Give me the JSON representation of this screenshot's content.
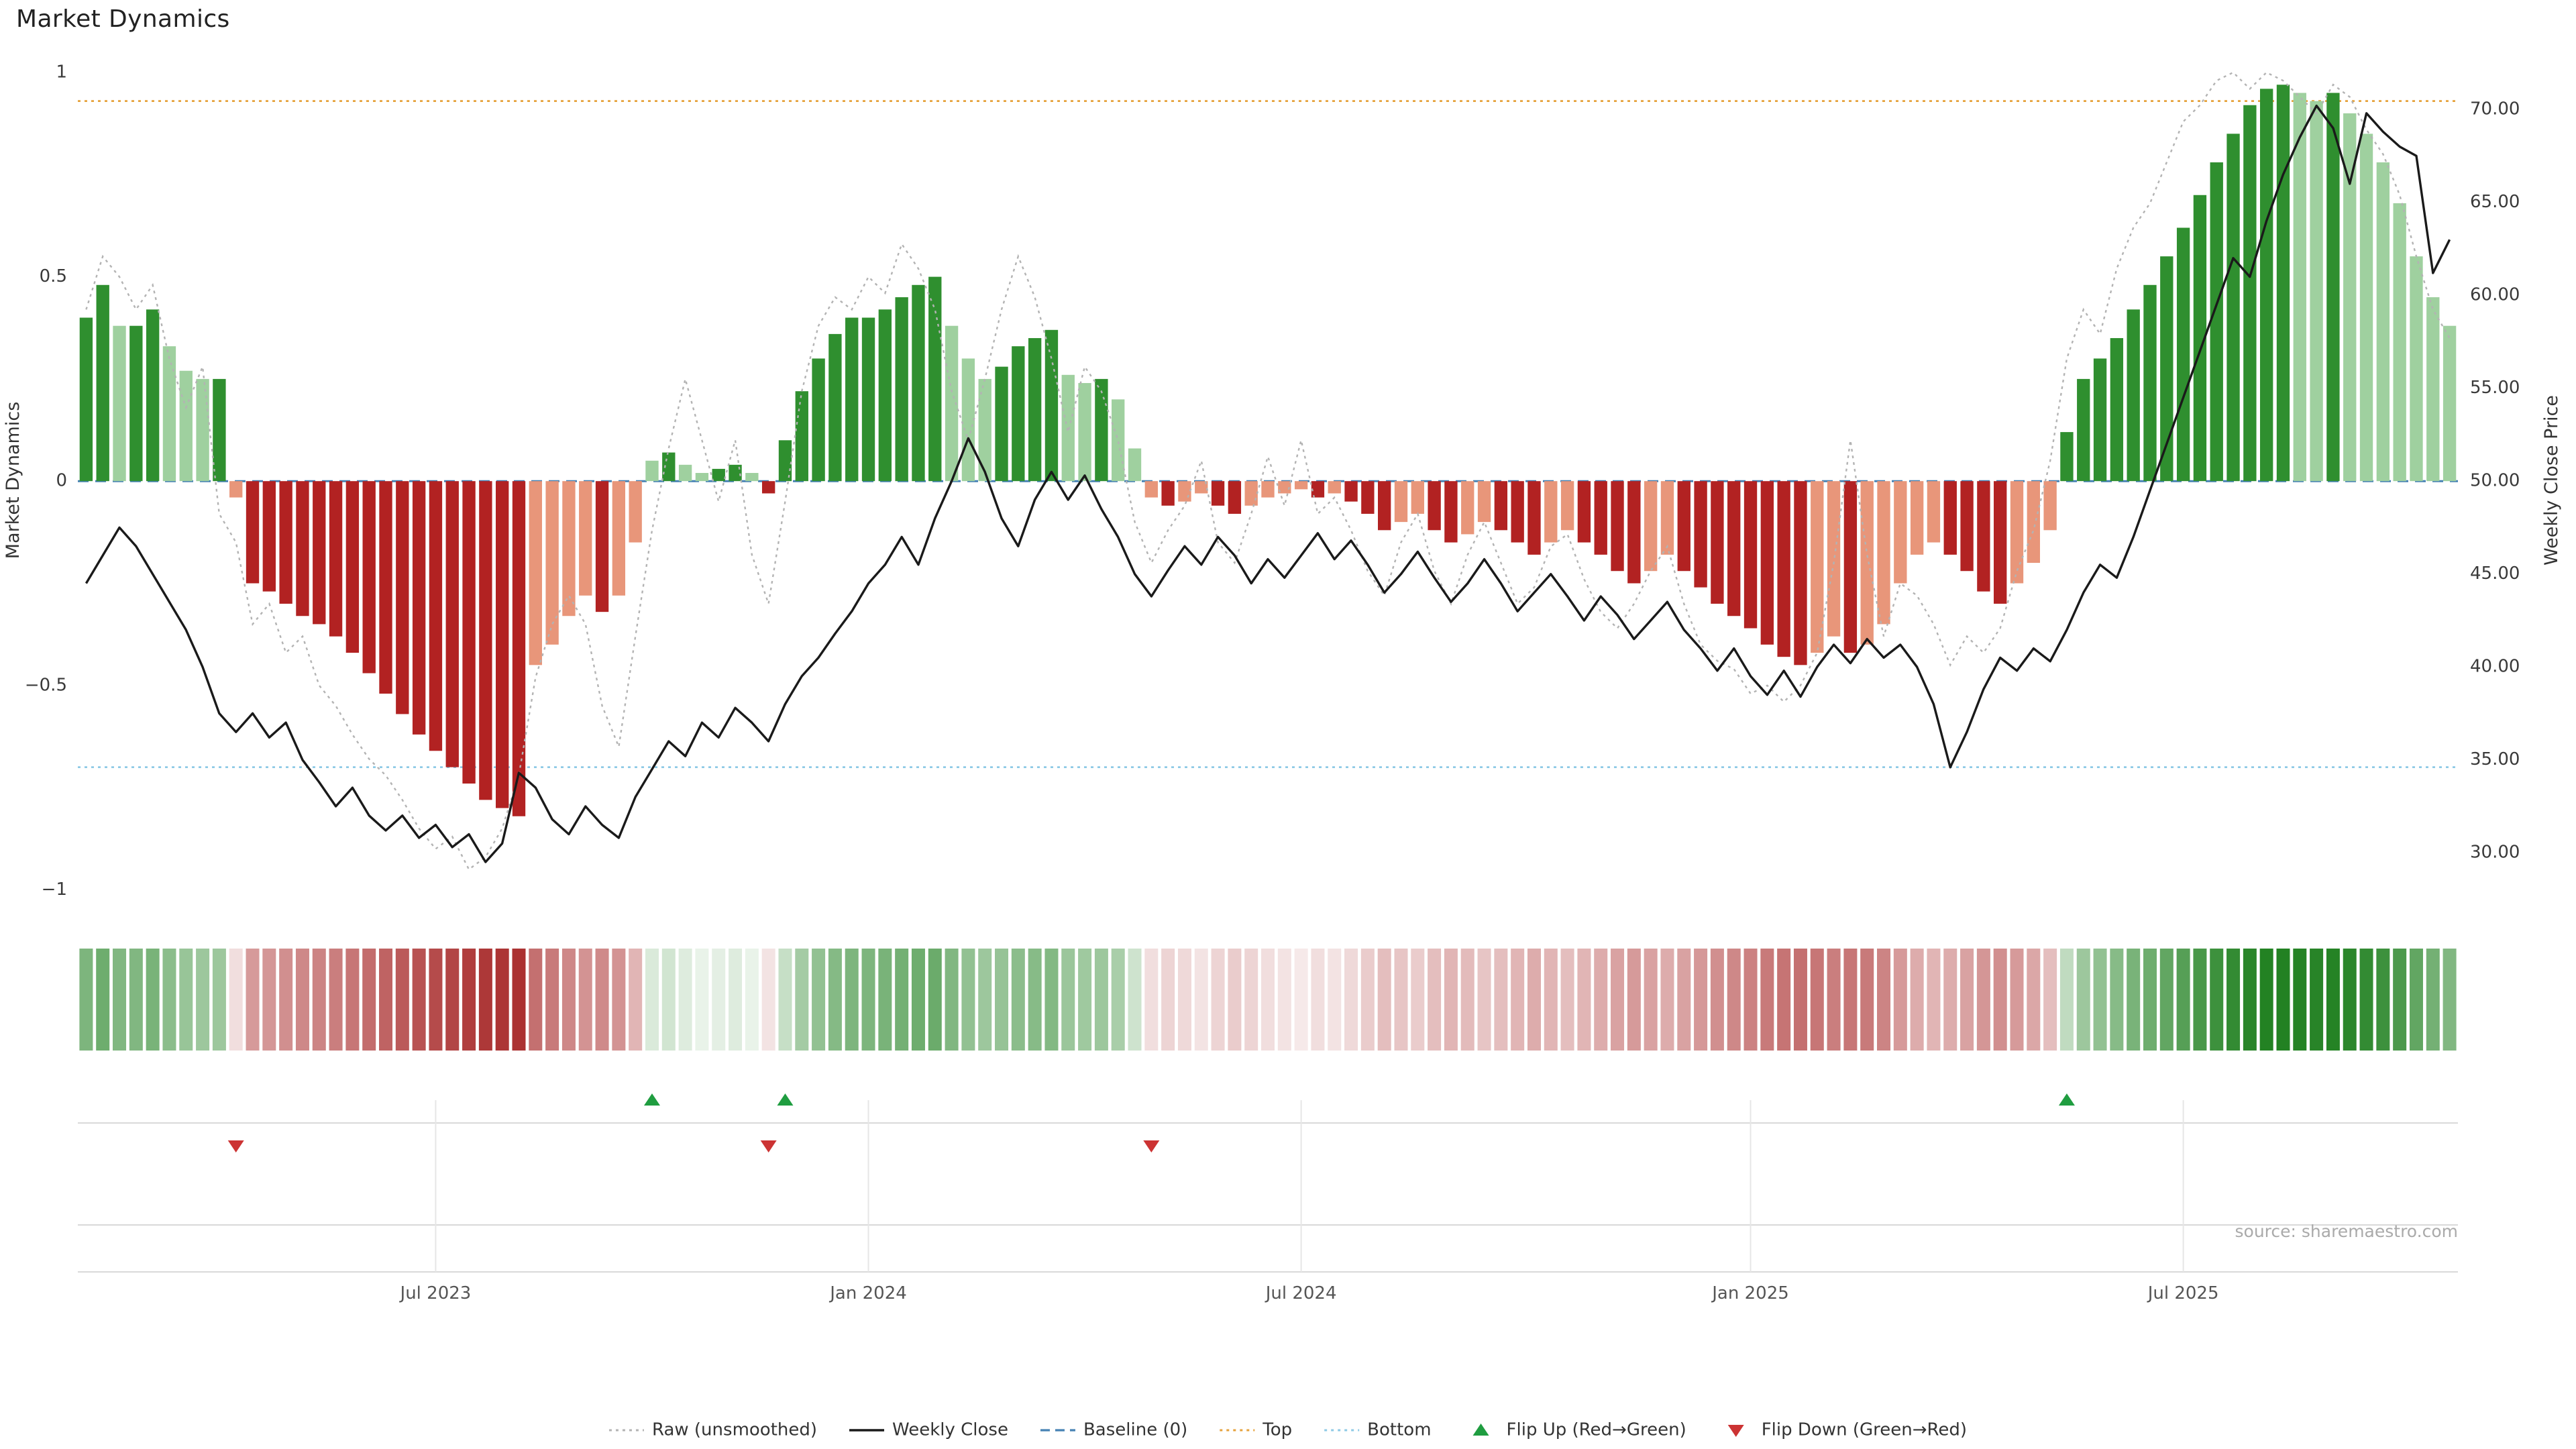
{
  "title": "Market Dynamics",
  "source": "source: sharemaestro.com",
  "colors": {
    "bar_green_dark": "#2f8f2f",
    "bar_green_light": "#9fd09f",
    "bar_red_dark": "#b22222",
    "bar_red_light": "#e8967a",
    "raw_line": "#b3b3b3",
    "close_line": "#1a1a1a",
    "baseline": "#4682b4",
    "top_line": "#e6a23c",
    "bottom_line": "#8ecae6",
    "flip_up": "#1f9d40",
    "flip_down": "#cc3333",
    "heat_green": "#1e7f1e",
    "heat_red": "#a01818",
    "grid": "#d9d9d9",
    "grid_light": "#e6e6e6",
    "tick_text": "#3a3a3a",
    "axis_label_text": "#333333",
    "x_tick_text": "#555555",
    "source_text": "#aaaaaa",
    "legend_text": "#333333"
  },
  "legend": {
    "items": [
      {
        "label": "Raw (unsmoothed)",
        "swatch": "dotted-line",
        "color_key": "raw_line"
      },
      {
        "label": "Weekly Close",
        "swatch": "solid-line",
        "color_key": "close_line"
      },
      {
        "label": "Baseline (0)",
        "swatch": "dashed-line",
        "color_key": "baseline"
      },
      {
        "label": "Top",
        "swatch": "dotted-line",
        "color_key": "top_line"
      },
      {
        "label": "Bottom",
        "swatch": "dotted-line",
        "color_key": "bottom_line"
      },
      {
        "label": "Flip Up (Red→Green)",
        "swatch": "triangle-up",
        "color_key": "flip_up"
      },
      {
        "label": "Flip Down (Green→Red)",
        "swatch": "triangle-down",
        "color_key": "flip_down"
      }
    ]
  },
  "chart_data": {
    "type": "bar",
    "description": "Weekly market-dynamics oscillator bars with raw unsmoothed overlay, weekly close price line on right axis, heatmap strip of same oscillator values, and regime flip markers.",
    "x_start_date": "2023-02-06",
    "x_step_days": 7,
    "n_points": 143,
    "baseline": 0,
    "top_threshold": 0.93,
    "bottom_threshold": -0.7,
    "flip_up_indices": [
      34,
      42,
      119
    ],
    "flip_down_indices": [
      9,
      41,
      64
    ],
    "left_axis": {
      "label": "Market Dynamics",
      "range": [
        -1.08,
        1.08
      ],
      "ticks": [
        {
          "label": "1",
          "value": 1
        },
        {
          "label": "0.5",
          "value": 0.5
        },
        {
          "label": "0",
          "value": 0
        },
        {
          "label": "−0.5",
          "value": -0.5
        },
        {
          "label": "−1",
          "value": -1
        }
      ]
    },
    "right_axis": {
      "label": "Weekly Close Price",
      "range": [
        28,
        72
      ],
      "ticks": [
        {
          "label": "70.00",
          "value": 70
        },
        {
          "label": "65.00",
          "value": 65
        },
        {
          "label": "60.00",
          "value": 60
        },
        {
          "label": "55.00",
          "value": 55
        },
        {
          "label": "50.00",
          "value": 50
        },
        {
          "label": "45.00",
          "value": 45
        },
        {
          "label": "40.00",
          "value": 40
        },
        {
          "label": "35.00",
          "value": 35
        },
        {
          "label": "30.00",
          "value": 30
        }
      ]
    },
    "x_axis": {
      "ticks": [
        {
          "label": "Jul 2023",
          "index": 21
        },
        {
          "label": "Jan 2024",
          "index": 47
        },
        {
          "label": "Jul 2024",
          "index": 73
        },
        {
          "label": "Jan 2025",
          "index": 100
        },
        {
          "label": "Jul 2025",
          "index": 126
        }
      ]
    },
    "oscillator": [
      0.4,
      0.48,
      0.38,
      0.38,
      0.42,
      0.33,
      0.27,
      0.25,
      0.25,
      -0.04,
      -0.25,
      -0.27,
      -0.3,
      -0.33,
      -0.35,
      -0.38,
      -0.42,
      -0.47,
      -0.52,
      -0.57,
      -0.62,
      -0.66,
      -0.7,
      -0.74,
      -0.78,
      -0.8,
      -0.82,
      -0.45,
      -0.4,
      -0.33,
      -0.28,
      -0.32,
      -0.28,
      -0.15,
      0.05,
      0.07,
      0.04,
      0.02,
      0.03,
      0.04,
      0.02,
      -0.03,
      0.1,
      0.22,
      0.3,
      0.36,
      0.4,
      0.4,
      0.42,
      0.45,
      0.48,
      0.5,
      0.38,
      0.3,
      0.25,
      0.28,
      0.33,
      0.35,
      0.37,
      0.26,
      0.24,
      0.25,
      0.2,
      0.08,
      -0.04,
      -0.06,
      -0.05,
      -0.03,
      -0.06,
      -0.08,
      -0.06,
      -0.04,
      -0.03,
      -0.02,
      -0.04,
      -0.03,
      -0.05,
      -0.08,
      -0.12,
      -0.1,
      -0.08,
      -0.12,
      -0.15,
      -0.13,
      -0.1,
      -0.12,
      -0.15,
      -0.18,
      -0.15,
      -0.12,
      -0.15,
      -0.18,
      -0.22,
      -0.25,
      -0.22,
      -0.18,
      -0.22,
      -0.26,
      -0.3,
      -0.33,
      -0.36,
      -0.4,
      -0.43,
      -0.45,
      -0.42,
      -0.38,
      -0.42,
      -0.4,
      -0.35,
      -0.25,
      -0.18,
      -0.15,
      -0.18,
      -0.22,
      -0.27,
      -0.3,
      -0.25,
      -0.2,
      -0.12,
      0.12,
      0.25,
      0.3,
      0.35,
      0.42,
      0.48,
      0.55,
      0.62,
      0.7,
      0.78,
      0.85,
      0.92,
      0.96,
      0.97,
      0.95,
      0.93,
      0.95,
      0.9,
      0.85,
      0.78,
      0.68,
      0.55,
      0.45,
      0.38
    ],
    "raw": [
      0.42,
      0.55,
      0.5,
      0.42,
      0.48,
      0.3,
      0.18,
      0.28,
      -0.08,
      -0.15,
      -0.35,
      -0.3,
      -0.42,
      -0.38,
      -0.5,
      -0.55,
      -0.62,
      -0.68,
      -0.72,
      -0.78,
      -0.85,
      -0.9,
      -0.87,
      -0.95,
      -0.92,
      -0.85,
      -0.72,
      -0.48,
      -0.35,
      -0.28,
      -0.35,
      -0.55,
      -0.65,
      -0.38,
      -0.12,
      0.08,
      0.25,
      0.1,
      -0.05,
      0.1,
      -0.18,
      -0.3,
      -0.05,
      0.22,
      0.38,
      0.45,
      0.42,
      0.5,
      0.46,
      0.58,
      0.52,
      0.42,
      0.22,
      0.1,
      0.25,
      0.42,
      0.55,
      0.45,
      0.3,
      0.12,
      0.28,
      0.22,
      0.1,
      -0.1,
      -0.2,
      -0.12,
      -0.06,
      0.05,
      -0.15,
      -0.2,
      -0.08,
      0.06,
      -0.06,
      0.1,
      -0.08,
      -0.04,
      -0.12,
      -0.22,
      -0.28,
      -0.15,
      -0.08,
      -0.22,
      -0.3,
      -0.18,
      -0.1,
      -0.2,
      -0.3,
      -0.26,
      -0.16,
      -0.13,
      -0.24,
      -0.32,
      -0.36,
      -0.3,
      -0.22,
      -0.16,
      -0.3,
      -0.4,
      -0.44,
      -0.46,
      -0.52,
      -0.5,
      -0.54,
      -0.5,
      -0.42,
      -0.2,
      0.1,
      -0.18,
      -0.38,
      -0.25,
      -0.28,
      -0.35,
      -0.45,
      -0.38,
      -0.42,
      -0.36,
      -0.22,
      -0.12,
      0.05,
      0.3,
      0.42,
      0.36,
      0.52,
      0.62,
      0.68,
      0.78,
      0.88,
      0.92,
      0.98,
      1.0,
      0.96,
      1.0,
      0.98,
      0.94,
      0.9,
      0.97,
      0.94,
      0.86,
      0.8,
      0.7,
      0.55,
      0.42,
      0.35
    ],
    "weekly_close": [
      44.5,
      46.0,
      47.5,
      46.5,
      45.0,
      43.5,
      42.0,
      40.0,
      37.5,
      36.5,
      37.5,
      36.2,
      37.0,
      35.0,
      33.8,
      32.5,
      33.5,
      32.0,
      31.2,
      32.0,
      30.8,
      31.5,
      30.3,
      31.0,
      29.5,
      30.5,
      34.3,
      33.5,
      31.8,
      31.0,
      32.5,
      31.5,
      30.8,
      33.0,
      34.5,
      36.0,
      35.2,
      37.0,
      36.2,
      37.8,
      37.0,
      36.0,
      38.0,
      39.5,
      40.5,
      41.8,
      43.0,
      44.5,
      45.5,
      47.0,
      45.5,
      48.0,
      50.0,
      52.3,
      50.5,
      48.0,
      46.5,
      49.0,
      50.5,
      49.0,
      50.3,
      48.5,
      47.0,
      45.0,
      43.8,
      45.2,
      46.5,
      45.5,
      47.0,
      46.0,
      44.5,
      45.8,
      44.8,
      46.0,
      47.2,
      45.8,
      46.8,
      45.5,
      44.0,
      45.0,
      46.2,
      44.8,
      43.5,
      44.5,
      45.8,
      44.5,
      43.0,
      44.0,
      45.0,
      43.8,
      42.5,
      43.8,
      42.8,
      41.5,
      42.5,
      43.5,
      42.0,
      41.0,
      39.8,
      41.0,
      39.5,
      38.5,
      39.8,
      38.4,
      40.0,
      41.2,
      40.2,
      41.5,
      40.5,
      41.2,
      40.0,
      38.0,
      34.6,
      36.5,
      38.8,
      40.5,
      39.8,
      41.0,
      40.3,
      42.0,
      44.0,
      45.5,
      44.8,
      47.0,
      49.5,
      52.0,
      54.5,
      57.0,
      59.5,
      62.0,
      61.0,
      64.0,
      66.5,
      68.5,
      70.2,
      69.0,
      66.0,
      69.8,
      68.8,
      68.0,
      67.5,
      61.2,
      63.0
    ]
  }
}
